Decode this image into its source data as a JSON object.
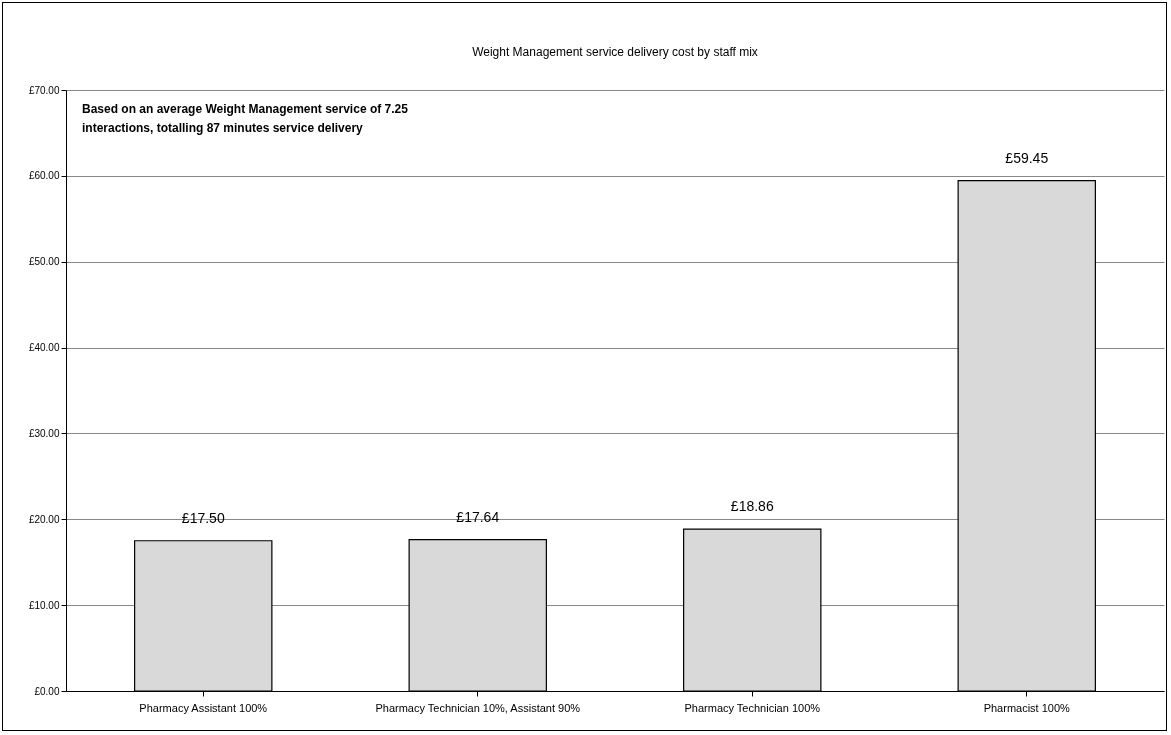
{
  "chart_data": {
    "type": "bar",
    "title": "Weight Management service delivery cost by staff mix",
    "categories": [
      "Pharmacy Assistant 100%",
      "Pharmacy Technician 10%, Assistant 90%",
      "Pharmacy Technician 100%",
      "Pharmacist 100%"
    ],
    "values": [
      17.5,
      17.64,
      18.86,
      59.45
    ],
    "value_labels": [
      "£17.50",
      "£17.64",
      "£18.86",
      "£59.45"
    ],
    "color": "#d9d9d9",
    "ylim": [
      0,
      70
    ],
    "yticks": [
      {
        "value": 0,
        "label": "£0.00"
      },
      {
        "value": 10,
        "label": "£10.00"
      },
      {
        "value": 20,
        "label": "£20.00"
      },
      {
        "value": 30,
        "label": "£30.00"
      },
      {
        "value": 40,
        "label": "£40.00"
      },
      {
        "value": 50,
        "label": "£50.00"
      },
      {
        "value": 60,
        "label": "£60.00"
      },
      {
        "value": 70,
        "label": "£70.00"
      }
    ],
    "grid": "y",
    "annotations": [
      "Based on an average Weight Management service of 7.25 interactions, totalling 87 minutes service delivery"
    ]
  }
}
